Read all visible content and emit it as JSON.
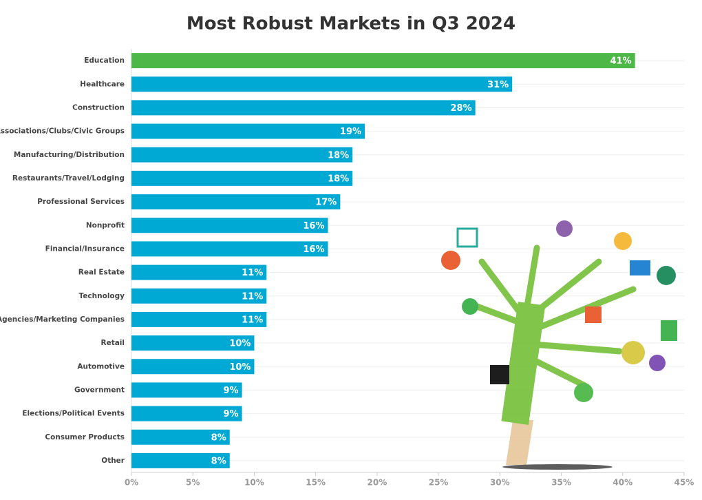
{
  "chart_data": {
    "type": "hbar",
    "title": "Most Robust Markets in Q3 2024",
    "categories": [
      "Education",
      "Healthcare",
      "Construction",
      "Associations/Clubs/Civic Groups",
      "Manufacturing/Distribution",
      "Restaurants/Travel/Lodging",
      "Professional Services",
      "Nonprofit",
      "Financial/Insurance",
      "Real Estate",
      "Technology",
      "Ad Agencies/Marketing Companies",
      "Retail",
      "Automotive",
      "Government",
      "Elections/Political Events",
      "Consumer Products",
      "Other"
    ],
    "values": [
      41,
      31,
      28,
      19,
      18,
      18,
      17,
      16,
      16,
      11,
      11,
      11,
      10,
      10,
      9,
      9,
      8,
      8
    ],
    "value_labels": [
      "41%",
      "31%",
      "28%",
      "19%",
      "18%",
      "18%",
      "17%",
      "16%",
      "16%",
      "11%",
      "11%",
      "11%",
      "10%",
      "10%",
      "9%",
      "9%",
      "8%",
      "8%"
    ],
    "colors": [
      "#4db848",
      "#00a9d4",
      "#00a9d4",
      "#00a9d4",
      "#00a9d4",
      "#00a9d4",
      "#00a9d4",
      "#00a9d4",
      "#00a9d4",
      "#00a9d4",
      "#00a9d4",
      "#00a9d4",
      "#00a9d4",
      "#00a9d4",
      "#00a9d4",
      "#00a9d4",
      "#00a9d4",
      "#00a9d4"
    ],
    "xlim": [
      0,
      45
    ],
    "xticks": [
      {
        "value": 0,
        "label": "0%"
      },
      {
        "value": 5,
        "label": "5%"
      },
      {
        "value": 10,
        "label": "10%"
      },
      {
        "value": 15,
        "label": "15%"
      },
      {
        "value": 20,
        "label": "20%"
      },
      {
        "value": 25,
        "label": "25%"
      },
      {
        "value": 30,
        "label": "30%"
      },
      {
        "value": 35,
        "label": "35%"
      },
      {
        "value": 40,
        "label": "40%"
      },
      {
        "value": 45,
        "label": "45%"
      }
    ]
  }
}
